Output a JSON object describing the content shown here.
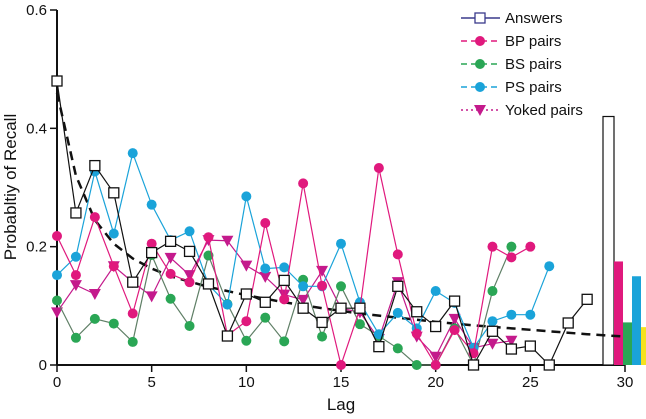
{
  "chart_data": {
    "type": "line",
    "xlabel": "Lag",
    "ylabel": "Probabltiy of Recall",
    "xlim": [
      0,
      30
    ],
    "ylim": [
      0,
      0.6
    ],
    "xticks": [
      0,
      5,
      10,
      15,
      20,
      25,
      30
    ],
    "yticks": [
      0,
      0.2,
      0.4,
      0.6
    ],
    "xtick_labels": [
      "0",
      "5",
      "10",
      "15",
      "20",
      "25",
      "30"
    ],
    "ytick_labels": [
      "0",
      "0.2",
      "0.4",
      "0.6"
    ],
    "legend_position": "top-right",
    "series": [
      {
        "name": "Answers",
        "color": "#3a3a8c",
        "line_color": "#111111",
        "line_style": "solid",
        "marker": "square-open",
        "x": [
          0,
          1,
          2,
          3,
          4,
          5,
          6,
          7,
          8,
          9,
          10,
          11,
          12,
          13,
          14,
          15,
          16,
          17,
          18,
          19,
          20,
          21,
          22,
          23,
          24,
          25,
          26,
          27,
          28
        ],
        "values": [
          0.48,
          0.257,
          0.337,
          0.291,
          0.14,
          0.19,
          0.209,
          0.192,
          0.137,
          0.049,
          0.12,
          0.106,
          0.143,
          0.096,
          0.072,
          0.096,
          0.096,
          0.031,
          0.133,
          0.09,
          0.065,
          0.108,
          0.0,
          0.057,
          0.027,
          0.032,
          0.0,
          0.071,
          0.111
        ]
      },
      {
        "name": "BP pairs",
        "color": "#e0197d",
        "line_style": "dashed",
        "marker": "circle",
        "x": [
          0,
          1,
          2,
          3,
          4,
          5,
          6,
          7,
          8,
          9,
          10,
          11,
          12,
          13,
          14,
          15,
          16,
          17,
          18,
          19,
          20,
          21,
          22,
          23,
          24,
          25
        ],
        "values": [
          0.218,
          0.152,
          0.25,
          0.167,
          0.087,
          0.205,
          0.154,
          0.14,
          0.216,
          0.05,
          0.074,
          0.24,
          0.111,
          0.307,
          0.134,
          0.0,
          0.095,
          0.333,
          0.187,
          0.053,
          0.0,
          0.059,
          0.02,
          0.2,
          0.182,
          0.2
        ]
      },
      {
        "name": "BS pairs",
        "color": "#2aa655",
        "line_color": "#5f7f66",
        "line_style": "dashed",
        "marker": "circle",
        "x": [
          0,
          1,
          2,
          3,
          4,
          5,
          6,
          7,
          8,
          9,
          10,
          11,
          12,
          13,
          14,
          15,
          16,
          17,
          18,
          19,
          20,
          21,
          22,
          23,
          24
        ],
        "values": [
          0.109,
          0.046,
          0.078,
          0.07,
          0.039,
          0.186,
          0.112,
          0.066,
          0.185,
          0.103,
          0.041,
          0.08,
          0.04,
          0.144,
          0.048,
          0.133,
          0.069,
          0.049,
          0.028,
          0.0,
          0.0,
          0.062,
          0.0,
          0.125,
          0.2
        ]
      },
      {
        "name": "PS pairs",
        "color": "#1aa3d9",
        "line_style": "dashed",
        "marker": "circle",
        "x": [
          0,
          1,
          2,
          3,
          4,
          5,
          6,
          7,
          8,
          9,
          10,
          11,
          12,
          13,
          14,
          15,
          16,
          17,
          18,
          19,
          20,
          21,
          22,
          23,
          24,
          25,
          26
        ],
        "values": [
          0.152,
          0.183,
          0.327,
          0.222,
          0.358,
          0.271,
          0.211,
          0.226,
          0.136,
          0.102,
          0.285,
          0.163,
          0.165,
          0.133,
          0.133,
          0.205,
          0.106,
          0.052,
          0.088,
          0.062,
          0.125,
          0.105,
          0.029,
          0.074,
          0.085,
          0.085,
          0.167
        ]
      },
      {
        "name": "Yoked pairs",
        "color": "#c41a8c",
        "line_style": "dotted",
        "marker": "triangle-down",
        "x": [
          0,
          1,
          2,
          3,
          4,
          5,
          6,
          7,
          8,
          9,
          10,
          11,
          12,
          13,
          14,
          15,
          16,
          17,
          18,
          19,
          20,
          21,
          22,
          23,
          24
        ],
        "values": [
          0.089,
          0.135,
          0.12,
          0.167,
          0.14,
          0.116,
          0.181,
          0.152,
          0.211,
          0.21,
          0.168,
          0.149,
          0.119,
          0.11,
          0.159,
          0.096,
          0.089,
          0.044,
          0.14,
          0.048,
          0.014,
          0.078,
          0.029,
          0.036,
          0.041
        ]
      }
    ],
    "trend_curve": {
      "style": "dashed",
      "color": "#111111",
      "x": [
        0,
        1,
        2,
        3,
        4,
        5,
        6,
        8,
        10,
        12,
        14,
        16,
        18,
        20,
        22,
        24,
        26,
        28,
        30
      ],
      "values": [
        0.46,
        0.32,
        0.245,
        0.205,
        0.18,
        0.163,
        0.15,
        0.132,
        0.118,
        0.106,
        0.096,
        0.087,
        0.08,
        0.073,
        0.067,
        0.062,
        0.057,
        0.052,
        0.048
      ]
    },
    "summary_bars": [
      {
        "series": "Answers",
        "value": 0.42,
        "color": "#ffffff",
        "stroke": "#111111"
      },
      {
        "series": "BP pairs",
        "value": 0.175,
        "color": "#e0197d"
      },
      {
        "series": "BS pairs",
        "value": 0.072,
        "color": "#2aa655"
      },
      {
        "series": "PS pairs",
        "value": 0.15,
        "color": "#1aa3d9"
      },
      {
        "series": "Yoked pairs",
        "value": 0.064,
        "color": "#f5e21e"
      }
    ]
  }
}
